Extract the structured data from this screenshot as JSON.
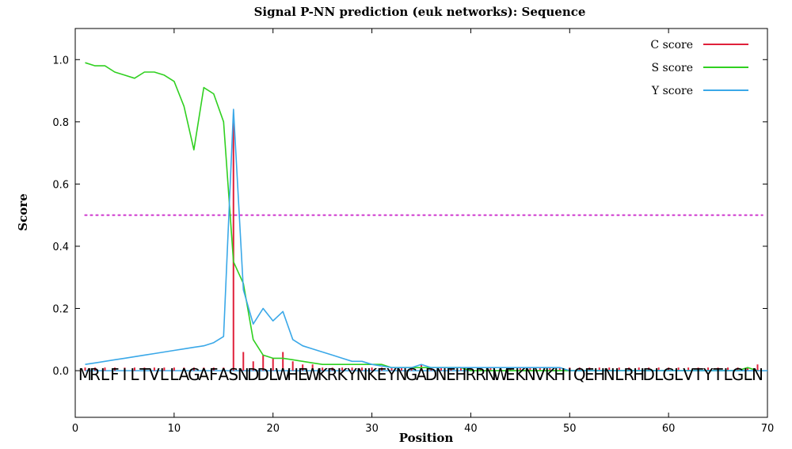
{
  "chart_data": {
    "type": "line",
    "title": "Signal P-NN prediction (euk networks): Sequence",
    "xlabel": "Position",
    "ylabel": "Score",
    "xlim": [
      0,
      70
    ],
    "ylim": [
      -0.15,
      1.1
    ],
    "x_ticks": [
      0,
      10,
      20,
      30,
      40,
      50,
      60,
      70
    ],
    "y_ticks": [
      0.0,
      0.2,
      0.4,
      0.6,
      0.8,
      1.0
    ],
    "y_tick_labels": [
      "0.0",
      "0.2",
      "0.4",
      "0.6",
      "0.8",
      "1.0"
    ],
    "legend_position": "top-right",
    "threshold": {
      "value": 0.5,
      "color": "#d040d0"
    },
    "sequence": [
      "M",
      "R",
      "L",
      "F",
      "I",
      "L",
      "T",
      "V",
      "L",
      "L",
      "A",
      "G",
      "A",
      "F",
      "A",
      "S",
      "N",
      "D",
      "D",
      "L",
      "W",
      "H",
      "E",
      "W",
      "K",
      "R",
      "K",
      "Y",
      "N",
      "K",
      "E",
      "Y",
      "N",
      "G",
      "A",
      "D",
      "N",
      "E",
      "H",
      "R",
      "R",
      "N",
      "W",
      "E",
      "K",
      "N",
      "V",
      "K",
      "H",
      "I",
      "Q",
      "E",
      "H",
      "N",
      "L",
      "R",
      "H",
      "D",
      "L",
      "G",
      "L",
      "V",
      "T",
      "Y",
      "T",
      "L",
      "G",
      "L",
      "N"
    ],
    "series": [
      {
        "name": "C score",
        "style": "impulse",
        "color": "#e0203a",
        "x": [
          1,
          2,
          3,
          4,
          5,
          6,
          7,
          8,
          9,
          10,
          11,
          12,
          13,
          14,
          15,
          16,
          17,
          18,
          19,
          20,
          21,
          22,
          23,
          24,
          25,
          26,
          27,
          28,
          29,
          30,
          31,
          32,
          33,
          34,
          35,
          36,
          37,
          38,
          39,
          40,
          41,
          42,
          43,
          44,
          45,
          46,
          47,
          48,
          49,
          50,
          51,
          52,
          53,
          54,
          55,
          56,
          57,
          58,
          59,
          60,
          61,
          62,
          63,
          64,
          65,
          66,
          67,
          68,
          69
        ],
        "values": [
          0.01,
          0.01,
          0.01,
          0.01,
          0.01,
          0.01,
          0.01,
          0.01,
          0.01,
          0.01,
          0.01,
          0.01,
          0.01,
          0.01,
          0.01,
          0.8,
          0.06,
          0.03,
          0.05,
          0.04,
          0.06,
          0.03,
          0.02,
          0.02,
          0.01,
          0.01,
          0.01,
          0.01,
          0.01,
          0.01,
          0.01,
          0.01,
          0.01,
          0.01,
          0.02,
          0.01,
          0.01,
          0.01,
          0.01,
          0.01,
          0.01,
          0.01,
          0.01,
          0.01,
          0.01,
          0.01,
          0.01,
          0.01,
          0.01,
          0.01,
          0.01,
          0.01,
          0.01,
          0.01,
          0.01,
          0.01,
          0.01,
          0.01,
          0.01,
          0.01,
          0.01,
          0.01,
          0.01,
          0.01,
          0.01,
          0.01,
          0.01,
          0.01,
          0.02
        ]
      },
      {
        "name": "S score",
        "style": "line",
        "color": "#30d020",
        "x": [
          1,
          2,
          3,
          4,
          5,
          6,
          7,
          8,
          9,
          10,
          11,
          12,
          13,
          14,
          15,
          16,
          17,
          18,
          19,
          20,
          21,
          22,
          23,
          24,
          25,
          26,
          27,
          28,
          29,
          30,
          31,
          32,
          33,
          34,
          35,
          36,
          37,
          38,
          39,
          40,
          41,
          42,
          43,
          44,
          45,
          46,
          47,
          48,
          49,
          50,
          51,
          52,
          53,
          54,
          55,
          56,
          57,
          58,
          59,
          60,
          61,
          62,
          63,
          64,
          65,
          66,
          67,
          68,
          69
        ],
        "values": [
          0.99,
          0.98,
          0.98,
          0.96,
          0.95,
          0.94,
          0.96,
          0.96,
          0.95,
          0.93,
          0.85,
          0.71,
          0.91,
          0.89,
          0.8,
          0.35,
          0.28,
          0.1,
          0.05,
          0.04,
          0.04,
          0.035,
          0.03,
          0.025,
          0.02,
          0.02,
          0.02,
          0.02,
          0.02,
          0.02,
          0.02,
          0.01,
          0.01,
          0.01,
          0.01,
          0.01,
          0.01,
          0.01,
          0.01,
          0.0,
          0.0,
          0.0,
          0.0,
          0.0,
          0.0,
          0.0,
          0.0,
          0.0,
          0.0,
          0.0,
          0.0,
          0.0,
          0.0,
          0.0,
          0.0,
          0.0,
          0.0,
          0.0,
          0.0,
          0.0,
          0.0,
          0.0,
          0.0,
          0.0,
          0.0,
          0.0,
          0.0,
          0.01,
          0.0
        ]
      },
      {
        "name": "Y score",
        "style": "line",
        "color": "#3aa8e8",
        "x": [
          1,
          2,
          3,
          4,
          5,
          6,
          7,
          8,
          9,
          10,
          11,
          12,
          13,
          14,
          15,
          16,
          17,
          18,
          19,
          20,
          21,
          22,
          23,
          24,
          25,
          26,
          27,
          28,
          29,
          30,
          31,
          32,
          33,
          34,
          35,
          36,
          37,
          38,
          39,
          40,
          41,
          42,
          43,
          44,
          45,
          46,
          47,
          48,
          49,
          50,
          51,
          52,
          53,
          54,
          55,
          56,
          57,
          58,
          59,
          60,
          61,
          62,
          63,
          64,
          65,
          66,
          67,
          68,
          69
        ],
        "values": [
          0.02,
          0.025,
          0.03,
          0.035,
          0.04,
          0.045,
          0.05,
          0.055,
          0.06,
          0.065,
          0.07,
          0.075,
          0.08,
          0.09,
          0.11,
          0.84,
          0.26,
          0.15,
          0.2,
          0.16,
          0.19,
          0.1,
          0.08,
          0.07,
          0.06,
          0.05,
          0.04,
          0.03,
          0.03,
          0.02,
          0.015,
          0.01,
          0.01,
          0.01,
          0.02,
          0.01,
          0.01,
          0.01,
          0.01,
          0.01,
          0.01,
          0.01,
          0.01,
          0.01,
          0.01,
          0.01,
          0.01,
          0.01,
          0.01,
          0.0,
          0.0,
          0.0,
          0.0,
          0.0,
          0.0,
          0.0,
          0.0,
          0.0,
          0.0,
          0.0,
          0.0,
          0.0,
          0.0,
          0.0,
          0.0,
          0.0,
          0.0,
          0.0,
          0.0
        ]
      }
    ]
  }
}
